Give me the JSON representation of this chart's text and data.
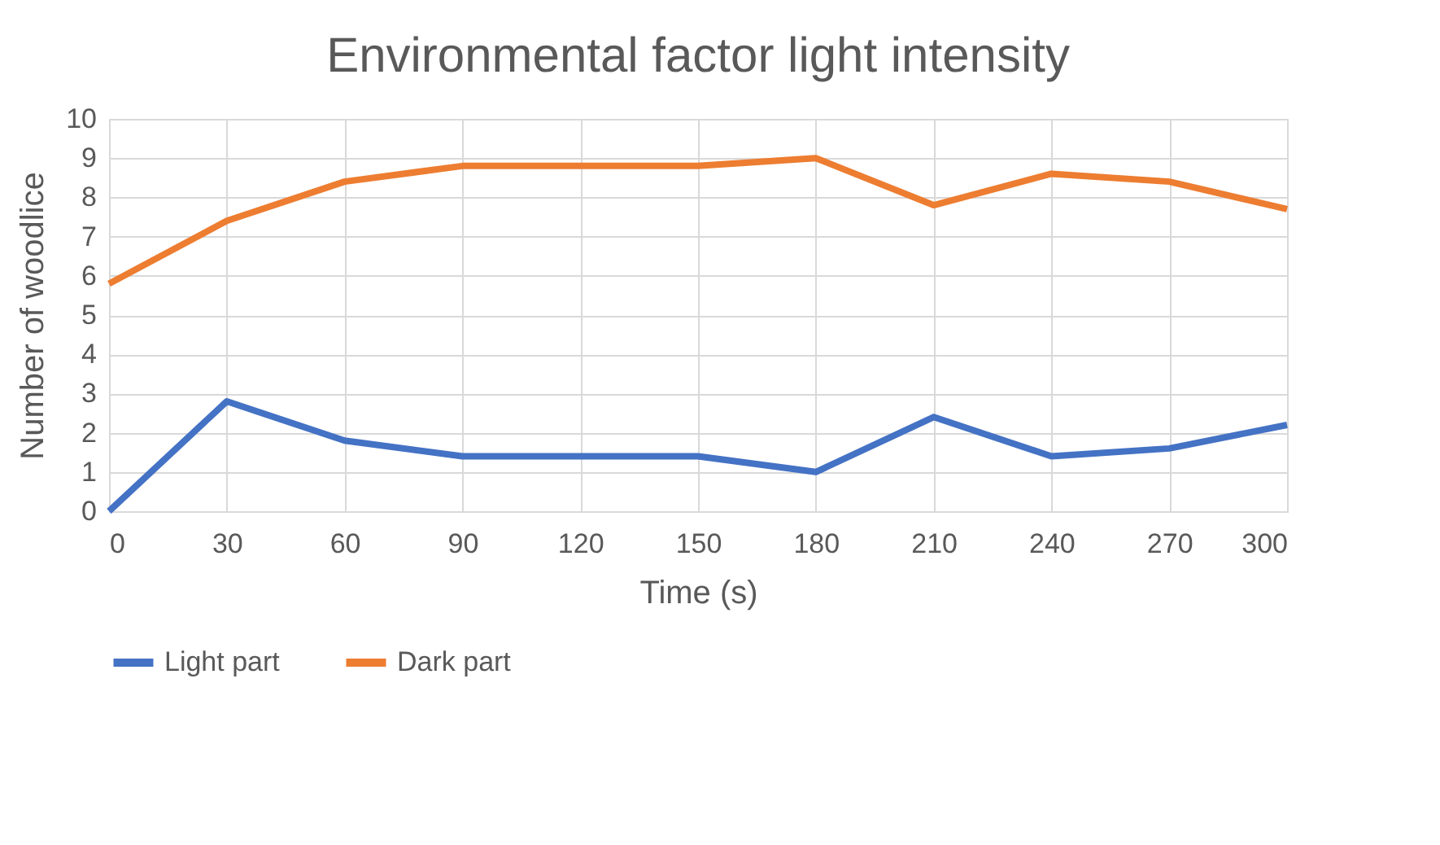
{
  "chart_data": {
    "type": "line",
    "title": "Environmental factor light intensity",
    "xlabel": "Time (s)",
    "ylabel": "Number of woodlice",
    "x": [
      0,
      30,
      60,
      90,
      120,
      150,
      180,
      210,
      240,
      270,
      300
    ],
    "series": [
      {
        "name": "Light part",
        "color": "#4472c4",
        "values": [
          0,
          2.8,
          1.8,
          1.4,
          1.4,
          1.4,
          1.0,
          2.4,
          1.4,
          1.6,
          2.2
        ]
      },
      {
        "name": "Dark part",
        "color": "#ed7d31",
        "values": [
          5.8,
          7.4,
          8.4,
          8.8,
          8.8,
          8.8,
          9.0,
          7.8,
          8.6,
          8.4,
          7.7
        ]
      }
    ],
    "xlim": [
      0,
      300
    ],
    "xticks": [
      0,
      30,
      60,
      90,
      120,
      150,
      180,
      210,
      240,
      270,
      300
    ],
    "ylim": [
      0,
      10
    ],
    "yticks": [
      0,
      1,
      2,
      3,
      4,
      5,
      6,
      7,
      8,
      9,
      10
    ],
    "grid": true,
    "legend": "bottom",
    "marker": "none",
    "line_style": "solid"
  }
}
